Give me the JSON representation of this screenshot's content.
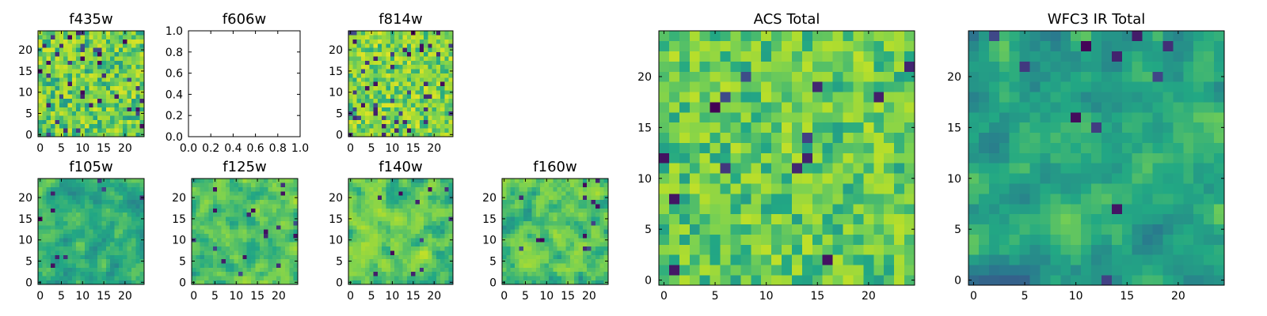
{
  "palette": [
    "#440154",
    "#414487",
    "#2a788e",
    "#22a884",
    "#7ad151",
    "#b5de2b",
    "#fde725"
  ],
  "chart_data": [
    {
      "type": "heatmap",
      "title": "f435w",
      "xticks": [
        "0",
        "5",
        "10",
        "15",
        "20"
      ],
      "yticks": [
        "0",
        "5",
        "10",
        "15",
        "20"
      ],
      "xlim": [
        -0.5,
        24.5
      ],
      "ylim": [
        -0.5,
        24.5
      ],
      "grid_size": 25,
      "texture": "noise",
      "dark_fraction": 0.07,
      "base": 0.68,
      "spread": 0.24,
      "seed": 11
    },
    {
      "type": "heatmap",
      "title": "f606w",
      "xticks": [
        "0.0",
        "0.2",
        "0.4",
        "0.6",
        "0.8",
        "1.0"
      ],
      "yticks": [
        "0.0",
        "0.2",
        "0.4",
        "0.6",
        "0.8",
        "1.0"
      ],
      "xlim": [
        0.0,
        1.0
      ],
      "ylim": [
        0.0,
        1.0
      ],
      "empty": true
    },
    {
      "type": "heatmap",
      "title": "f814w",
      "xticks": [
        "0",
        "5",
        "10",
        "15",
        "20"
      ],
      "yticks": [
        "0",
        "5",
        "10",
        "15",
        "20"
      ],
      "xlim": [
        -0.5,
        24.5
      ],
      "ylim": [
        -0.5,
        24.5
      ],
      "grid_size": 25,
      "texture": "noise",
      "dark_fraction": 0.06,
      "base": 0.72,
      "spread": 0.22,
      "seed": 23
    },
    {
      "type": "heatmap",
      "title": "f105w",
      "xticks": [
        "0",
        "5",
        "10",
        "15",
        "20"
      ],
      "yticks": [
        "0",
        "5",
        "10",
        "15",
        "20"
      ],
      "xlim": [
        -0.5,
        24.5
      ],
      "ylim": [
        -0.5,
        24.5
      ],
      "grid_size": 25,
      "texture": "smooth",
      "dark_fraction": 0.015,
      "base": 0.52,
      "spread": 0.16,
      "seed": 37
    },
    {
      "type": "heatmap",
      "title": "f125w",
      "xticks": [
        "0",
        "5",
        "10",
        "15",
        "20"
      ],
      "yticks": [
        "0",
        "5",
        "10",
        "15",
        "20"
      ],
      "xlim": [
        -0.5,
        24.5
      ],
      "ylim": [
        -0.5,
        24.5
      ],
      "grid_size": 25,
      "texture": "smooth",
      "dark_fraction": 0.02,
      "base": 0.6,
      "spread": 0.18,
      "seed": 41
    },
    {
      "type": "heatmap",
      "title": "f140w",
      "xticks": [
        "0",
        "5",
        "10",
        "15",
        "20"
      ],
      "yticks": [
        "0",
        "5",
        "10",
        "15",
        "20"
      ],
      "xlim": [
        -0.5,
        24.5
      ],
      "ylim": [
        -0.5,
        24.5
      ],
      "grid_size": 25,
      "texture": "smooth",
      "dark_fraction": 0.02,
      "base": 0.64,
      "spread": 0.2,
      "seed": 53
    },
    {
      "type": "heatmap",
      "title": "f160w",
      "xticks": [
        "0",
        "5",
        "10",
        "15",
        "20"
      ],
      "yticks": [
        "0",
        "5",
        "10",
        "15",
        "20"
      ],
      "xlim": [
        -0.5,
        24.5
      ],
      "ylim": [
        -0.5,
        24.5
      ],
      "grid_size": 25,
      "texture": "smooth",
      "dark_fraction": 0.02,
      "base": 0.62,
      "spread": 0.2,
      "seed": 67
    },
    {
      "type": "heatmap",
      "title": "ACS Total",
      "xticks": [
        "0",
        "5",
        "10",
        "15",
        "20"
      ],
      "yticks": [
        "0",
        "5",
        "10",
        "15",
        "20"
      ],
      "xlim": [
        -0.5,
        24.5
      ],
      "ylim": [
        -0.5,
        24.5
      ],
      "grid_size": 25,
      "texture": "noise",
      "dark_fraction": 0.03,
      "base": 0.66,
      "spread": 0.2,
      "seed": 79
    },
    {
      "type": "heatmap",
      "title": "WFC3 IR Total",
      "xticks": [
        "0",
        "5",
        "10",
        "15",
        "20"
      ],
      "yticks": [
        "0",
        "5",
        "10",
        "15",
        "20"
      ],
      "xlim": [
        -0.5,
        24.5
      ],
      "ylim": [
        -0.5,
        24.5
      ],
      "grid_size": 25,
      "texture": "smooth",
      "dark_fraction": 0.02,
      "base": 0.48,
      "spread": 0.16,
      "seed": 97
    }
  ]
}
